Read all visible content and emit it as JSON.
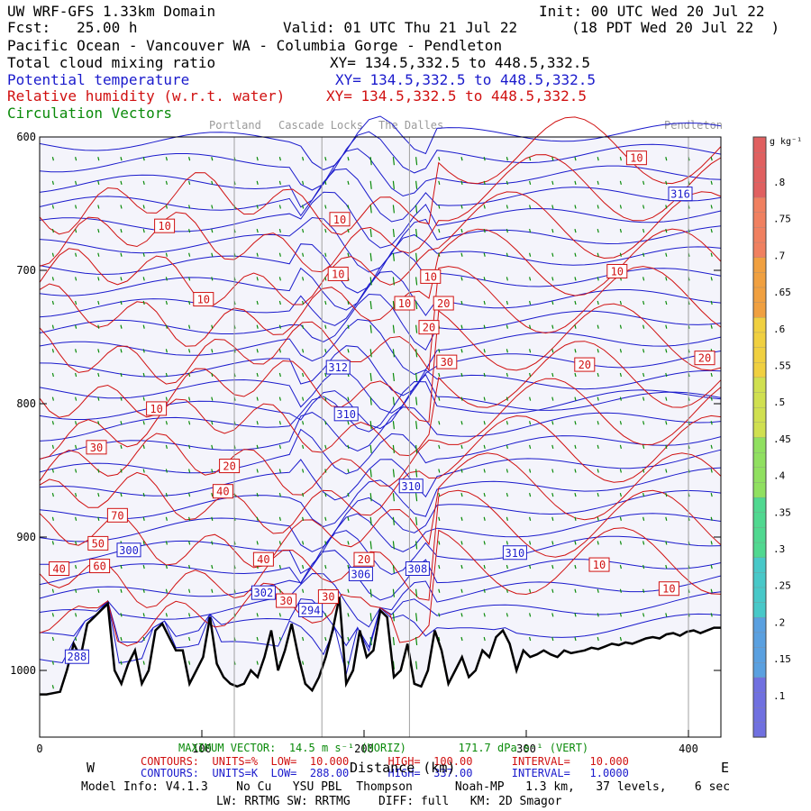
{
  "header": {
    "model": "UW WRF-GFS 1.33km Domain",
    "init": "Init: 00 UTC Wed 20 Jul 22",
    "fcst": "Fcst:   25.00 h",
    "valid": "Valid: 01 UTC Thu 21 Jul 22",
    "local": "(18 PDT Wed 20 Jul 22  )",
    "region": "Pacific Ocean - Vancouver WA - Columbia Gorge - Pendleton",
    "field1": "Total cloud mixing ratio",
    "field2": "Potential temperature",
    "field3": "Relative humidity (w.r.t. water)",
    "field4": "Circulation Vectors",
    "xy1": "XY= 134.5,332.5 to 448.5,332.5",
    "xy2": "XY= 134.5,332.5 to 448.5,332.5",
    "xy3": "XY= 134.5,332.5 to 448.5,332.5"
  },
  "colors": {
    "theta": "#1a1acc",
    "rh": "#d01010",
    "vectors": "#0a8a0a",
    "terrain": "#000000",
    "plot_bg": "#f4f4fb",
    "town_lines": "#a0a0a0"
  },
  "chart_data": {
    "type": "cross-section",
    "xlabel": "Distance (km)",
    "x_ticks": [
      0,
      100,
      200,
      300,
      400
    ],
    "xlim": [
      0,
      420
    ],
    "y_ticks": [
      600,
      700,
      800,
      900,
      1000
    ],
    "ylim": [
      1050,
      600
    ],
    "towns": [
      {
        "name": "Portland",
        "x": 120
      },
      {
        "name": "Cascade Locks",
        "x": 174
      },
      {
        "name": "The Dalles",
        "x": 228
      },
      {
        "name": "Pendleton",
        "x": 400
      }
    ],
    "direction_left": "W",
    "direction_right": "E",
    "colorbar": {
      "unit": "g kg⁻¹",
      "labels": [
        ".8",
        ".75",
        ".7",
        ".65",
        ".6",
        ".55",
        ".5",
        ".45",
        ".4",
        ".35",
        ".3",
        ".25",
        ".2",
        ".15",
        ".1"
      ]
    },
    "terrain_p": [
      1018,
      1018,
      1017,
      1016,
      1000,
      980,
      990,
      965,
      960,
      955,
      950,
      1000,
      1010,
      995,
      985,
      1010,
      1000,
      970,
      965,
      975,
      985,
      985,
      1010,
      1000,
      990,
      960,
      995,
      1005,
      1010,
      1012,
      1010,
      1000,
      1005,
      990,
      970,
      1000,
      985,
      965,
      990,
      1010,
      1015,
      1005,
      990,
      970,
      945,
      1010,
      1000,
      970,
      990,
      985,
      955,
      960,
      1005,
      1000,
      980,
      1010,
      1012,
      1000,
      970,
      985,
      1010,
      1000,
      990,
      1005,
      1000,
      985,
      990,
      975,
      970,
      980,
      1000,
      985,
      990,
      988,
      985,
      988,
      990,
      985,
      987,
      986,
      985,
      983,
      984,
      982,
      980,
      981,
      979,
      980,
      978,
      976,
      975,
      976,
      973,
      972,
      974,
      971,
      970,
      972,
      970,
      968,
      968
    ],
    "theta_labels": [
      {
        "text": "316",
        "x": 395,
        "p": 643
      },
      {
        "text": "312",
        "x": 184,
        "p": 773
      },
      {
        "text": "310",
        "x": 189,
        "p": 808
      },
      {
        "text": "310",
        "x": 229,
        "p": 862
      },
      {
        "text": "310",
        "x": 293,
        "p": 912
      },
      {
        "text": "308",
        "x": 233,
        "p": 924
      },
      {
        "text": "306",
        "x": 198,
        "p": 928
      },
      {
        "text": "302",
        "x": 138,
        "p": 942
      },
      {
        "text": "300",
        "x": 55,
        "p": 910
      },
      {
        "text": "294",
        "x": 167,
        "p": 955
      },
      {
        "text": "288",
        "x": 23,
        "p": 990
      }
    ],
    "rh_labels": [
      {
        "text": "10",
        "x": 368,
        "p": 616
      },
      {
        "text": "10",
        "x": 77,
        "p": 667
      },
      {
        "text": "10",
        "x": 185,
        "p": 662
      },
      {
        "text": "10",
        "x": 184,
        "p": 703
      },
      {
        "text": "10",
        "x": 241,
        "p": 705
      },
      {
        "text": "10",
        "x": 356,
        "p": 701
      },
      {
        "text": "10",
        "x": 101,
        "p": 722
      },
      {
        "text": "10",
        "x": 225,
        "p": 725
      },
      {
        "text": "20",
        "x": 249,
        "p": 725
      },
      {
        "text": "20",
        "x": 240,
        "p": 743
      },
      {
        "text": "30",
        "x": 251,
        "p": 769
      },
      {
        "text": "20",
        "x": 336,
        "p": 771
      },
      {
        "text": "20",
        "x": 410,
        "p": 766
      },
      {
        "text": "10",
        "x": 72,
        "p": 804
      },
      {
        "text": "30",
        "x": 35,
        "p": 833
      },
      {
        "text": "20",
        "x": 117,
        "p": 847
      },
      {
        "text": "40",
        "x": 113,
        "p": 866
      },
      {
        "text": "70",
        "x": 48,
        "p": 884
      },
      {
        "text": "50",
        "x": 36,
        "p": 905
      },
      {
        "text": "60",
        "x": 37,
        "p": 922
      },
      {
        "text": "40",
        "x": 12,
        "p": 924
      },
      {
        "text": "40",
        "x": 138,
        "p": 917
      },
      {
        "text": "20",
        "x": 200,
        "p": 917
      },
      {
        "text": "30",
        "x": 152,
        "p": 948
      },
      {
        "text": "30",
        "x": 178,
        "p": 945
      },
      {
        "text": "10",
        "x": 345,
        "p": 921
      },
      {
        "text": "10",
        "x": 388,
        "p": 939
      }
    ]
  },
  "footer": {
    "vector": "MAXIMUM VECTOR:  14.5 m s⁻¹ (HORIZ)        171.7 dPa s⁻¹ (VERT)",
    "rh_contours": "CONTOURS:  UNITS=%  LOW=  10.000      HIGH=  100.00      INTERVAL=   10.000",
    "th_contours": "CONTOURS:  UNITS=K  LOW=  288.00      HIGH=  337.00      INTERVAL=   1.0000",
    "model_info": "Model Info: V4.1.3    No Cu   YSU PBL  Thompson      Noah-MP   1.3 km,   37 levels,    6 sec",
    "model_info2": "LW: RRTMG SW: RRTMG    DIFF: full   KM: 2D Smagor"
  }
}
